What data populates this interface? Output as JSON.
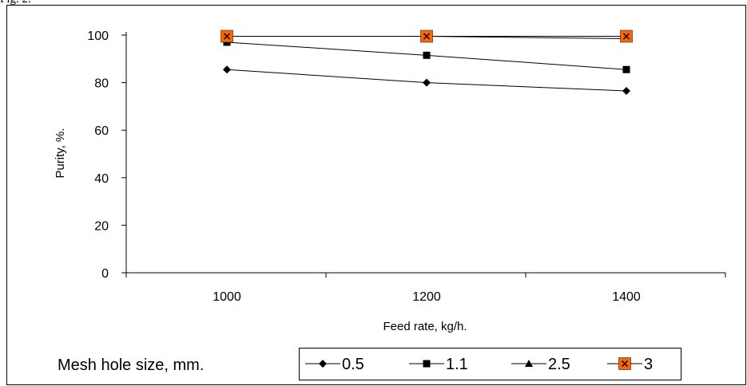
{
  "header_fragment": "Fig. 2.",
  "chart_data": {
    "type": "line",
    "title": "",
    "xlabel": "Feed rate, kg/h.",
    "ylabel": "Purity, %.",
    "x": [
      1000,
      1200,
      1400
    ],
    "x_tick_labels": [
      "1000",
      "1200",
      "1400"
    ],
    "y_tick_labels": [
      "0",
      "20",
      "40",
      "60",
      "80",
      "100"
    ],
    "ylim": [
      0,
      100
    ],
    "grid": false,
    "legend_title": "Mesh hole size, mm.",
    "legend_position": "bottom",
    "series": [
      {
        "name": "0.5",
        "values": [
          85.5,
          80,
          76.5
        ],
        "marker": "diamond",
        "color": "#000000"
      },
      {
        "name": "1.1",
        "values": [
          97,
          91.5,
          85.5
        ],
        "marker": "square",
        "color": "#000000"
      },
      {
        "name": "2.5",
        "values": [
          99.5,
          99.5,
          98.5
        ],
        "marker": "triangle",
        "color": "#000000"
      },
      {
        "name": "3",
        "values": [
          99.5,
          99.5,
          99.5
        ],
        "marker": "x-square",
        "color": "#000000",
        "marker_fill": "#FF6600"
      }
    ]
  }
}
